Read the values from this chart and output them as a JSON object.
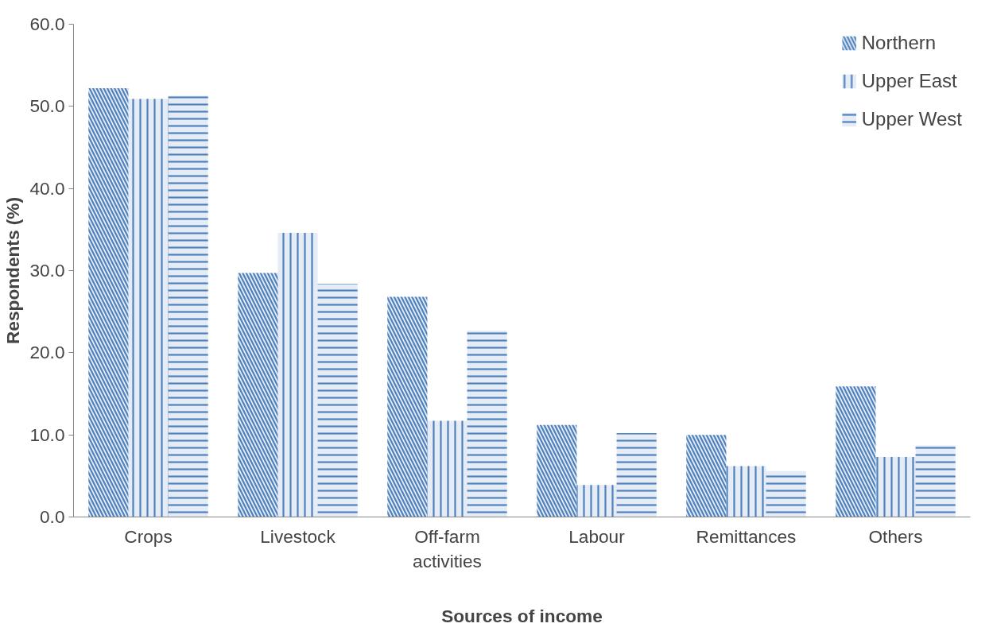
{
  "chart_data": {
    "type": "bar",
    "xlabel": "Sources of income",
    "ylabel": "Respondents (%)",
    "categories": [
      "Crops",
      "Livestock",
      "Off-farm activities",
      "Labour",
      "Remittances",
      "Others"
    ],
    "series": [
      {
        "name": "Northern",
        "color": "#4f81bd",
        "values": [
          52.2,
          29.7,
          26.8,
          11.2,
          10.0,
          15.9
        ]
      },
      {
        "name": "Upper East",
        "color": "#4f81bd",
        "values": [
          50.9,
          34.6,
          11.7,
          3.9,
          6.2,
          7.3
        ]
      },
      {
        "name": "Upper West",
        "color": "#4f81bd",
        "values": [
          51.3,
          28.4,
          22.7,
          10.2,
          5.6,
          8.7
        ]
      }
    ],
    "ylim": [
      0,
      60
    ],
    "yticks": [
      {
        "value": 0,
        "label": "0.0"
      },
      {
        "value": 10,
        "label": "10.0"
      },
      {
        "value": 20,
        "label": "20.0"
      },
      {
        "value": 30,
        "label": "30.0"
      },
      {
        "value": 40,
        "label": "40.0"
      },
      {
        "value": 50,
        "label": "50.0"
      },
      {
        "value": 60,
        "label": "60.0"
      }
    ],
    "grid": false,
    "legend": "top right"
  }
}
